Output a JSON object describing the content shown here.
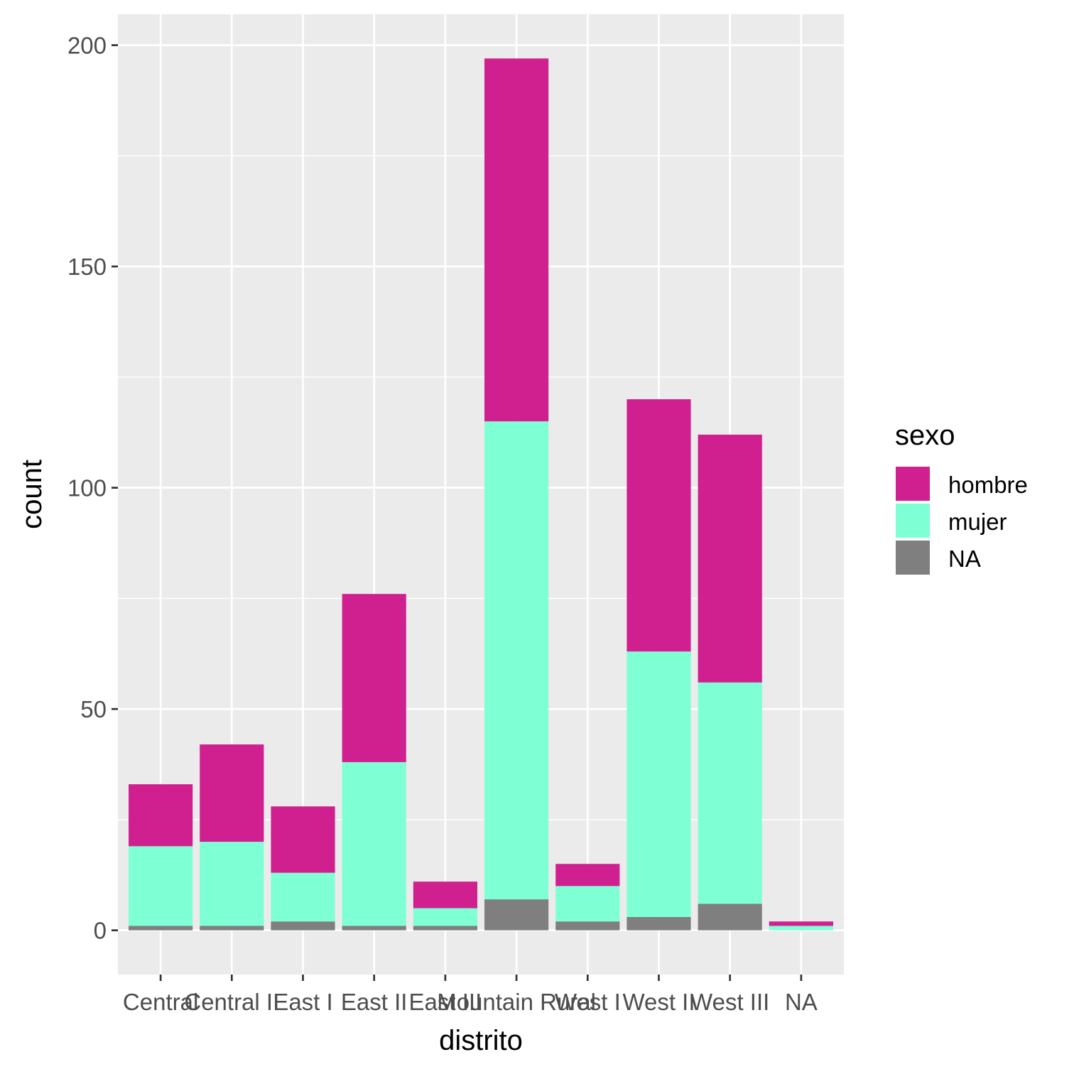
{
  "chart_data": {
    "type": "bar",
    "stacked": true,
    "xlabel": "distrito",
    "ylabel": "count",
    "ylim": [
      -10,
      207
    ],
    "yticks": [
      0,
      50,
      100,
      150,
      200
    ],
    "ytick_labels": [
      "0",
      "50",
      "100",
      "150",
      "200"
    ],
    "categories": [
      "Central",
      "Central II",
      "East I",
      "East II",
      "East III",
      "Mountain Rural",
      "West I",
      "West II",
      "West III",
      "NA"
    ],
    "series": [
      {
        "name": "NA",
        "color": "#7f7f7f",
        "values": [
          1,
          1,
          2,
          1,
          1,
          7,
          2,
          3,
          6,
          0
        ]
      },
      {
        "name": "mujer",
        "color": "#7fffd4",
        "values": [
          18,
          19,
          11,
          37,
          4,
          108,
          8,
          60,
          50,
          1
        ]
      },
      {
        "name": "hombre",
        "color": "#d02090",
        "values": [
          14,
          22,
          15,
          38,
          6,
          82,
          5,
          57,
          56,
          1
        ]
      }
    ],
    "legend": {
      "title": "sexo",
      "position": "right",
      "entries": [
        {
          "label": "hombre",
          "color": "#d02090"
        },
        {
          "label": "mujer",
          "color": "#7fffd4"
        },
        {
          "label": "NA",
          "color": "#7f7f7f"
        }
      ]
    },
    "grid": true,
    "panel_background": "#ebebeb",
    "grid_color": "#ffffff",
    "tick_color": "#333333"
  }
}
